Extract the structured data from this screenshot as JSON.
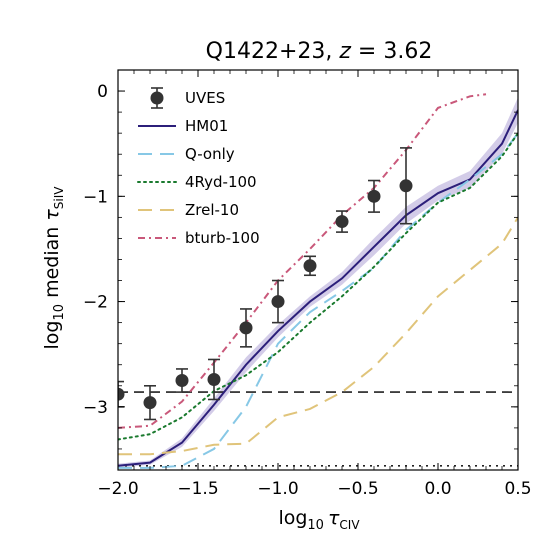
{
  "chart_data": {
    "type": "line",
    "title_main": "Q1422+23, ",
    "title_var": "z",
    "title_rest": " = 3.62",
    "xlabel": {
      "prefix": "log",
      "sub": "10",
      "sym": "τ",
      "symsub": "CIV"
    },
    "ylabel": {
      "prefix": "log",
      "sub": "10",
      "mid": " median ",
      "sym": "τ",
      "symsub": "SiIV"
    },
    "xlim": [
      -2.0,
      0.5
    ],
    "ylim": [
      -3.6,
      0.2
    ],
    "xticks": [
      -2.0,
      -1.5,
      -1.0,
      -0.5,
      0.0,
      0.5
    ],
    "xtick_labels": [
      "−2.0",
      "−1.5",
      "−1.0",
      "−0.5",
      "0.0",
      "0.5"
    ],
    "yticks": [
      -3,
      -2,
      -1,
      0
    ],
    "ytick_labels": [
      "−3",
      "−2",
      "−1",
      "0"
    ],
    "grid": false,
    "legend_position": "top-left",
    "legend": [
      {
        "label": "UVES",
        "kind": "marker",
        "color": "#333333"
      },
      {
        "label": "HM01",
        "kind": "solid",
        "color": "#2c1f7a"
      },
      {
        "label": "Q-only",
        "kind": "dashed",
        "color": "#87c8e6"
      },
      {
        "label": "4Ryd-100",
        "kind": "dotted",
        "color": "#1a7a2e"
      },
      {
        "label": "Zrel-10",
        "kind": "dashed",
        "color": "#e0c47a"
      },
      {
        "label": "bturb-100",
        "kind": "dashdot",
        "color": "#c9587a"
      }
    ],
    "points": {
      "name": "UVES",
      "x": [
        -2.0,
        -1.8,
        -1.6,
        -1.4,
        -1.2,
        -1.0,
        -0.8,
        -0.6,
        -0.4,
        -0.2
      ],
      "y": [
        -2.88,
        -2.96,
        -2.75,
        -2.74,
        -2.25,
        -2.0,
        -1.66,
        -1.24,
        -1.0,
        -0.9
      ],
      "yerr": [
        0.12,
        0.16,
        0.11,
        0.19,
        0.18,
        0.2,
        0.09,
        0.1,
        0.15,
        0.36
      ]
    },
    "series": [
      {
        "name": "HM01",
        "color": "#2c1f7a",
        "x": [
          -2.0,
          -1.8,
          -1.6,
          -1.4,
          -1.2,
          -1.0,
          -0.8,
          -0.6,
          -0.4,
          -0.2,
          0.0,
          0.2,
          0.4,
          0.5
        ],
        "y": [
          -3.56,
          -3.53,
          -3.34,
          -2.98,
          -2.6,
          -2.28,
          -2.0,
          -1.78,
          -1.48,
          -1.18,
          -0.97,
          -0.84,
          -0.5,
          -0.18
        ],
        "band_lo": [
          -3.58,
          -3.55,
          -3.38,
          -3.04,
          -2.67,
          -2.34,
          -2.05,
          -1.84,
          -1.56,
          -1.26,
          -1.04,
          -0.92,
          -0.6,
          -0.3
        ],
        "band_hi": [
          -3.54,
          -3.51,
          -3.3,
          -2.92,
          -2.53,
          -2.22,
          -1.95,
          -1.72,
          -1.4,
          -1.1,
          -0.9,
          -0.76,
          -0.4,
          -0.06
        ]
      },
      {
        "name": "Q-only",
        "color": "#87c8e6",
        "x": [
          -2.0,
          -1.8,
          -1.6,
          -1.4,
          -1.2,
          -1.0,
          -0.8,
          -0.6,
          -0.4,
          -0.2,
          0.0,
          0.2,
          0.4,
          0.5
        ],
        "y": [
          -3.58,
          -3.58,
          -3.56,
          -3.4,
          -3.0,
          -2.4,
          -2.1,
          -1.9,
          -1.68,
          -1.32,
          -1.06,
          -0.84,
          -0.6,
          -0.4
        ]
      },
      {
        "name": "4Ryd-100",
        "color": "#1a7a2e",
        "x": [
          -2.0,
          -1.8,
          -1.6,
          -1.4,
          -1.2,
          -1.0,
          -0.8,
          -0.6,
          -0.4,
          -0.2,
          0.0,
          0.2,
          0.4,
          0.5
        ],
        "y": [
          -3.31,
          -3.26,
          -3.1,
          -2.85,
          -2.7,
          -2.48,
          -2.2,
          -1.95,
          -1.67,
          -1.35,
          -1.06,
          -0.92,
          -0.62,
          -0.4
        ]
      },
      {
        "name": "Zrel-10",
        "color": "#e0c47a",
        "x": [
          -2.0,
          -1.8,
          -1.6,
          -1.4,
          -1.2,
          -1.0,
          -0.8,
          -0.6,
          -0.4,
          -0.2,
          0.0,
          0.2,
          0.4,
          0.5
        ],
        "y": [
          -3.45,
          -3.45,
          -3.42,
          -3.36,
          -3.35,
          -3.1,
          -3.02,
          -2.86,
          -2.62,
          -2.3,
          -1.95,
          -1.7,
          -1.45,
          -1.2
        ]
      },
      {
        "name": "bturb-100",
        "color": "#c9587a",
        "x": [
          -2.0,
          -1.8,
          -1.6,
          -1.4,
          -1.2,
          -1.0,
          -0.8,
          -0.6,
          -0.4,
          -0.2,
          0.0,
          0.2,
          0.3
        ],
        "y": [
          -3.2,
          -3.18,
          -2.95,
          -2.58,
          -2.2,
          -1.8,
          -1.5,
          -1.18,
          -0.92,
          -0.56,
          -0.16,
          -0.05,
          -0.03
        ]
      }
    ],
    "hlines": [
      {
        "y": -2.86,
        "style": "dashed",
        "color": "#222222"
      },
      {
        "y": -3.56,
        "style": "dotted",
        "color": "#222222"
      }
    ]
  }
}
